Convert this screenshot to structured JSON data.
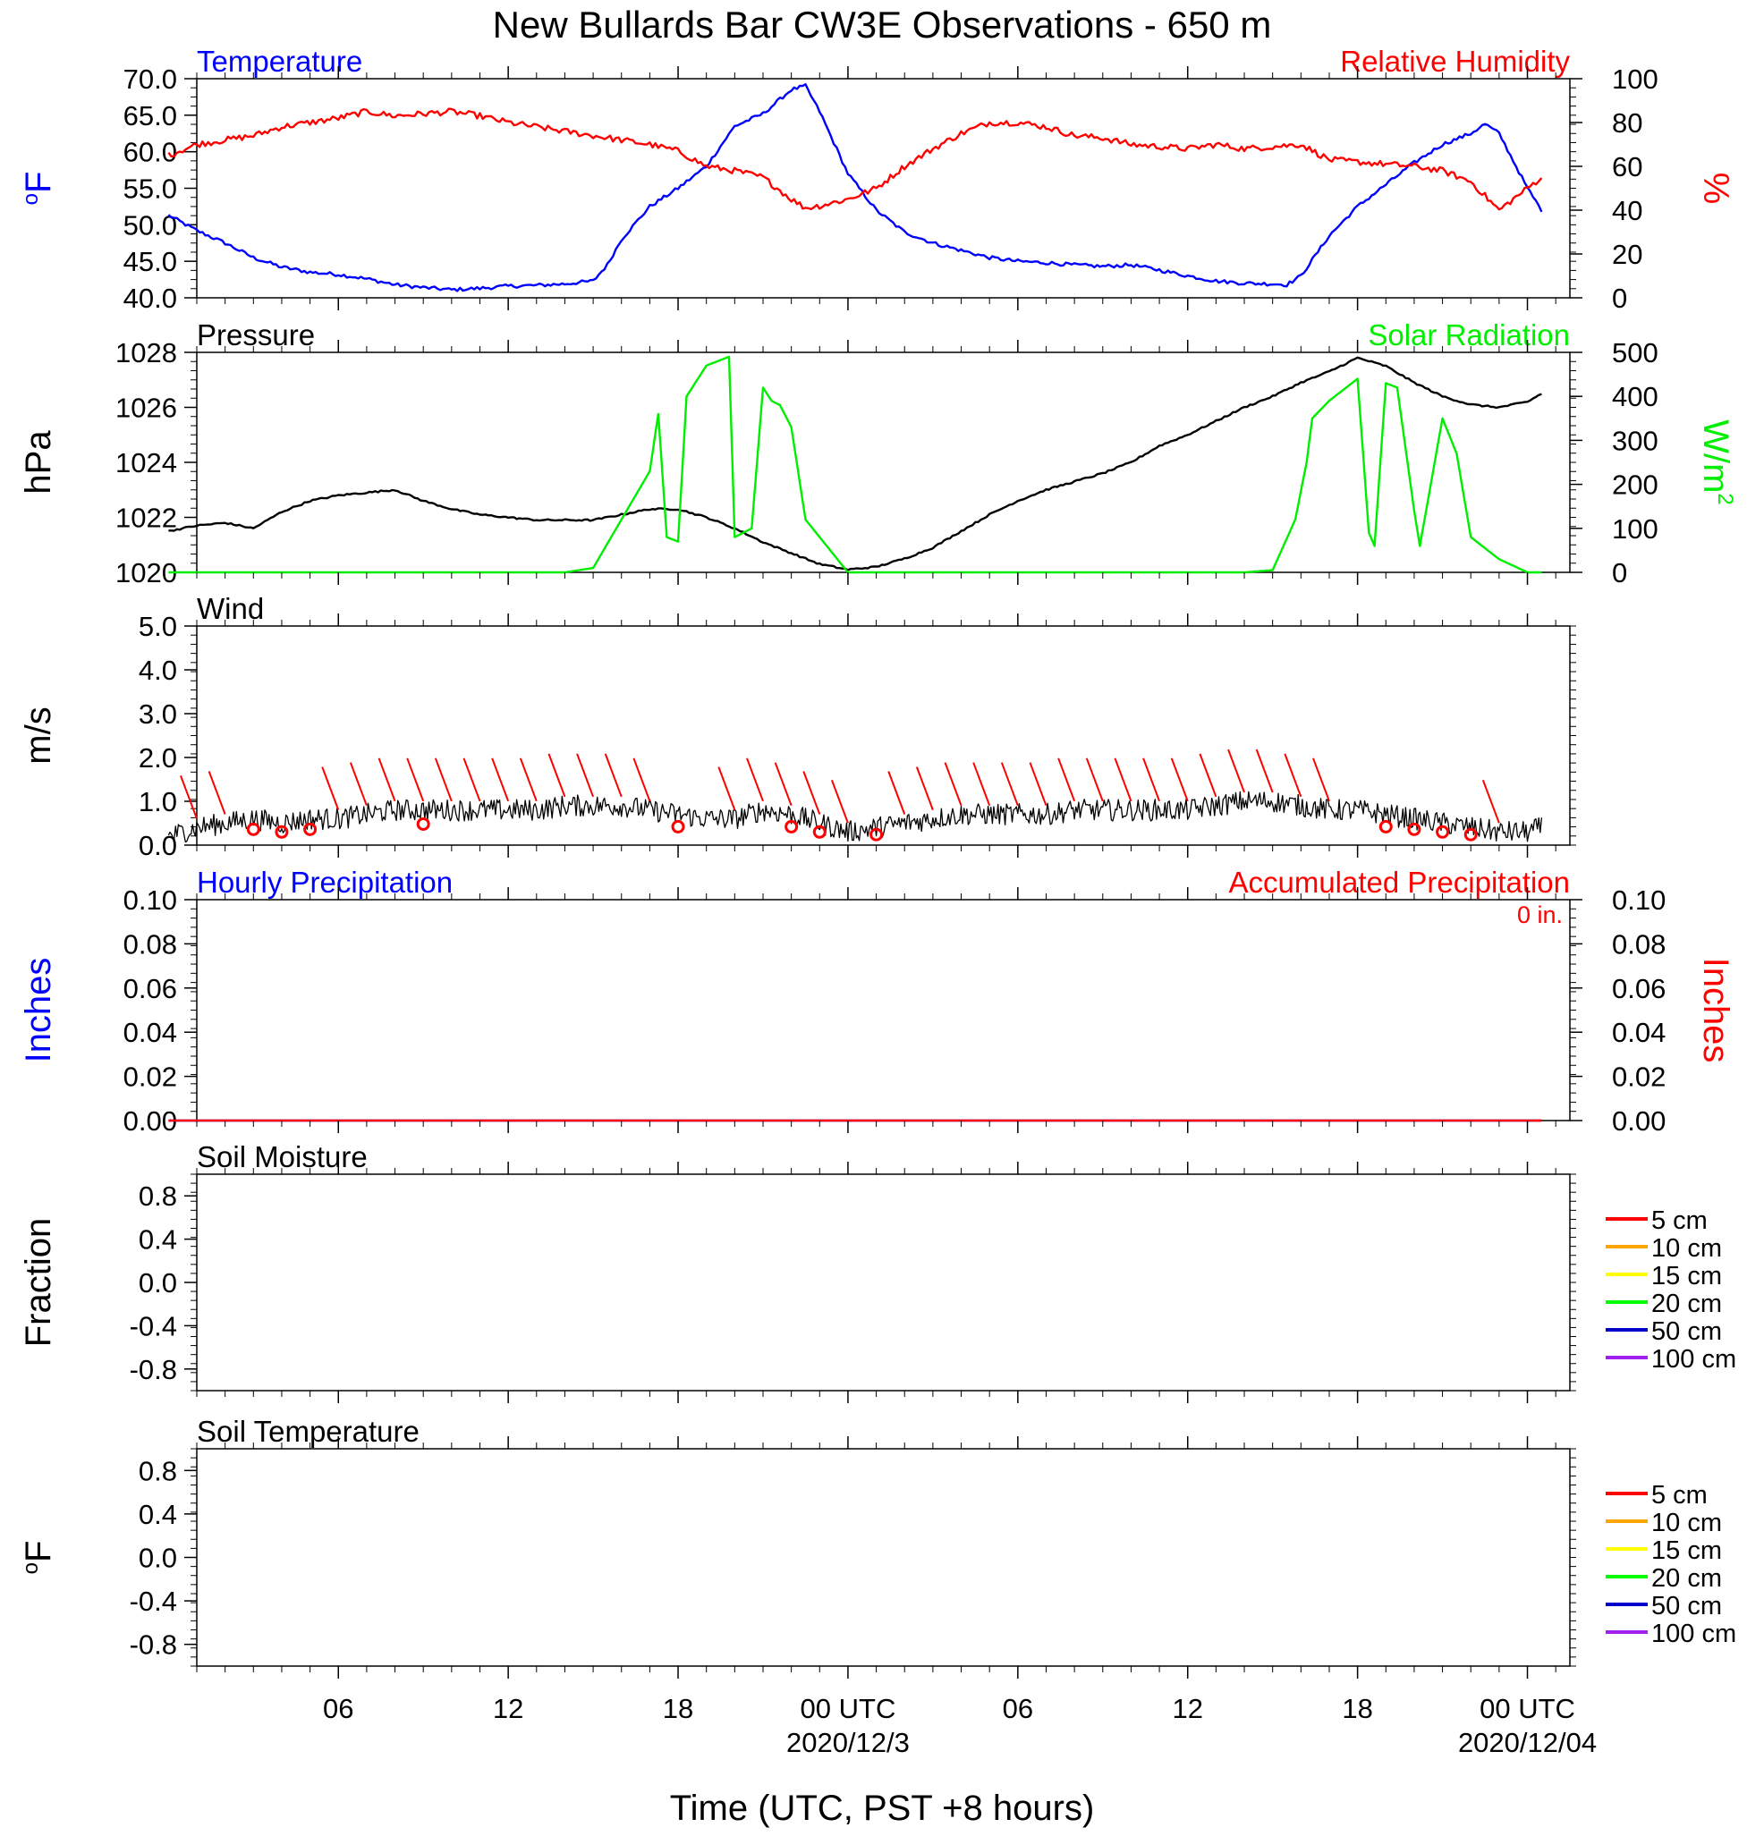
{
  "title": "New Bullards Bar CW3E Observations - 650 m",
  "xlabel": "Time (UTC, PST +8 hours)",
  "x_ticks": [
    {
      "hour": 6,
      "label": "06"
    },
    {
      "hour": 12,
      "label": "12"
    },
    {
      "hour": 18,
      "label": "18"
    },
    {
      "hour": 24,
      "label": "00 UTC",
      "sublabel": "2020/12/3"
    },
    {
      "hour": 30,
      "label": "06"
    },
    {
      "hour": 36,
      "label": "12"
    },
    {
      "hour": 42,
      "label": "18"
    },
    {
      "hour": 48,
      "label": "00 UTC",
      "sublabel": "2020/12/04"
    }
  ],
  "colors": {
    "temperature": "#0000ff",
    "humidity": "#ff0000",
    "pressure": "#000000",
    "solar": "#00ee00",
    "wind": "#000000",
    "barb": "#ff0000",
    "precip_hourly": "#0000ff",
    "precip_accum": "#ff0000"
  },
  "chart_data": [
    {
      "type": "line",
      "left_title": "Temperature",
      "right_title": "Relative Humidity",
      "ylabel_left": "°F",
      "ylabel_right": "%",
      "ylim_left": [
        40,
        70
      ],
      "ylim_right": [
        0,
        100
      ],
      "yticks_left": [
        "40.0",
        "45.0",
        "50.0",
        "55.0",
        "60.0",
        "65.0",
        "70.0"
      ],
      "yticks_right": [
        "0",
        "20",
        "40",
        "60",
        "80",
        "100"
      ],
      "series": [
        {
          "name": "Temperature",
          "axis": "left",
          "x": [
            0,
            1,
            2,
            3,
            4,
            5,
            6,
            7,
            8,
            9,
            10,
            11,
            12,
            13,
            14,
            15,
            15.5,
            16,
            17,
            18,
            19,
            20,
            21,
            22,
            22.5,
            23,
            24,
            25,
            26,
            27,
            28,
            29,
            30,
            31,
            32,
            33,
            34,
            35,
            36,
            37,
            38,
            39,
            39.5,
            40,
            41,
            42,
            43,
            44,
            45,
            46,
            46.5,
            47,
            48,
            48.5
          ],
          "y": [
            51.3,
            49.2,
            47.5,
            45.5,
            44.2,
            43.5,
            43.2,
            42.6,
            41.8,
            41.4,
            41.1,
            41.3,
            41.6,
            41.7,
            41.9,
            42.3,
            44.5,
            48,
            52.5,
            55,
            58,
            63.5,
            65.2,
            68.5,
            69,
            65.5,
            57,
            52,
            49,
            47.5,
            46.5,
            45.5,
            45,
            44.8,
            44.5,
            44.3,
            44.5,
            43.8,
            43,
            42.3,
            42,
            41.9,
            41.8,
            43,
            48.5,
            52.5,
            55.5,
            58.5,
            61,
            62.5,
            63.8,
            62.5,
            55,
            52
          ]
        },
        {
          "name": "Relative Humidity",
          "axis": "right",
          "x": [
            0,
            1,
            2,
            3,
            4,
            5,
            6,
            7,
            8,
            9,
            10,
            11,
            12,
            13,
            14,
            15,
            16,
            17,
            18,
            19,
            20,
            21,
            22,
            22.5,
            23,
            24,
            25,
            26,
            27,
            28,
            29,
            30,
            31,
            32,
            33,
            34,
            35,
            36,
            37,
            38,
            39,
            40,
            41,
            42,
            43,
            44,
            45,
            46,
            47,
            48,
            48.5
          ],
          "y": [
            65,
            70,
            72,
            74,
            78,
            80,
            82,
            85,
            83,
            84,
            85,
            83,
            80,
            78,
            76,
            74,
            72,
            70,
            67,
            60,
            58,
            55,
            45,
            41,
            42,
            45,
            50,
            60,
            68,
            75,
            80,
            80,
            78,
            74,
            73,
            70,
            69,
            68,
            70,
            68,
            69,
            70,
            63,
            62,
            61,
            60,
            58,
            53,
            40,
            50,
            55
          ]
        }
      ]
    },
    {
      "type": "line",
      "left_title": "Pressure",
      "right_title": "Solar Radiation",
      "ylabel_left": "hPa",
      "ylabel_right": "W/m",
      "ylabel_right_sup": "2",
      "ylim_left": [
        1020,
        1028
      ],
      "ylim_right": [
        0,
        500
      ],
      "yticks_left": [
        "1020",
        "1022",
        "1024",
        "1026",
        "1028"
      ],
      "yticks_right": [
        "0",
        "100",
        "200",
        "300",
        "400",
        "500"
      ],
      "series": [
        {
          "name": "Pressure",
          "axis": "left",
          "x": [
            0,
            1,
            2,
            3,
            4,
            5,
            6,
            7,
            8,
            9,
            10,
            11,
            12,
            13,
            14,
            15,
            16,
            17,
            18,
            19,
            20,
            21,
            22,
            23,
            24,
            25,
            26,
            27,
            28,
            29,
            30,
            31,
            32,
            33,
            34,
            35,
            36,
            37,
            38,
            39,
            40,
            41,
            42,
            43,
            44,
            45,
            46,
            47,
            48,
            48.5
          ],
          "y": [
            1021.5,
            1021.7,
            1021.8,
            1021.6,
            1022.2,
            1022.6,
            1022.8,
            1022.9,
            1023,
            1022.6,
            1022.3,
            1022.1,
            1022.0,
            1021.9,
            1021.9,
            1021.9,
            1022.1,
            1022.3,
            1022.3,
            1022.0,
            1021.6,
            1021.1,
            1020.7,
            1020.3,
            1020.1,
            1020.2,
            1020.5,
            1020.9,
            1021.5,
            1022.1,
            1022.6,
            1023.0,
            1023.3,
            1023.6,
            1024.0,
            1024.6,
            1025.0,
            1025.5,
            1026.0,
            1026.4,
            1026.9,
            1027.3,
            1027.8,
            1027.5,
            1026.9,
            1026.4,
            1026.1,
            1026.0,
            1026.2,
            1026.5
          ]
        },
        {
          "name": "Solar Radiation",
          "axis": "right",
          "x": [
            0,
            14,
            15,
            16,
            17,
            17.3,
            17.6,
            18,
            18.3,
            19,
            19.8,
            20,
            20.6,
            21,
            21.3,
            21.6,
            22,
            22.5,
            23,
            23.5,
            24,
            38,
            39,
            39.8,
            40.2,
            40.4,
            41,
            42,
            42.4,
            42.6,
            43,
            43.4,
            44,
            44.2,
            45,
            45.5,
            46,
            47,
            48,
            48.5
          ],
          "y": [
            0,
            0,
            10,
            120,
            230,
            360,
            80,
            70,
            400,
            470,
            490,
            80,
            100,
            420,
            390,
            380,
            330,
            120,
            80,
            40,
            0,
            0,
            5,
            120,
            250,
            350,
            390,
            440,
            90,
            60,
            430,
            420,
            140,
            60,
            350,
            270,
            80,
            30,
            0,
            0
          ]
        }
      ]
    },
    {
      "type": "line",
      "left_title": "Wind",
      "ylabel_left": "m/s",
      "ylim_left": [
        0,
        5
      ],
      "yticks_left": [
        "0.0",
        "1.0",
        "2.0",
        "3.0",
        "4.0",
        "5.0"
      ],
      "series": [
        {
          "name": "Wind",
          "axis": "left",
          "x": [
            0,
            1,
            2,
            3,
            4,
            5,
            6,
            7,
            8,
            9,
            10,
            11,
            12,
            13,
            14,
            15,
            16,
            17,
            18,
            19,
            20,
            21,
            22,
            23,
            24,
            25,
            26,
            27,
            28,
            29,
            30,
            31,
            32,
            33,
            34,
            35,
            36,
            37,
            38,
            39,
            40,
            41,
            42,
            43,
            44,
            45,
            46,
            47,
            48,
            48.5
          ],
          "y": [
            0.2,
            0.4,
            0.5,
            0.6,
            0.5,
            0.6,
            0.6,
            0.7,
            0.8,
            0.8,
            0.8,
            0.8,
            0.8,
            0.8,
            0.9,
            0.9,
            0.9,
            0.8,
            0.7,
            0.6,
            0.6,
            0.8,
            0.7,
            0.5,
            0.3,
            0.4,
            0.5,
            0.6,
            0.7,
            0.7,
            0.7,
            0.7,
            0.8,
            0.8,
            0.8,
            0.8,
            0.8,
            0.9,
            1.0,
            1.0,
            0.9,
            0.8,
            0.8,
            0.7,
            0.6,
            0.5,
            0.4,
            0.3,
            0.3,
            0.4
          ]
        }
      ],
      "calm_hours": [
        3,
        4,
        5,
        9,
        18,
        22,
        23,
        25,
        43,
        44,
        45,
        46
      ],
      "barb_hours": [
        1,
        2,
        6,
        7,
        8,
        9,
        10,
        11,
        12,
        13,
        14,
        15,
        16,
        17,
        20,
        21,
        22,
        23,
        24,
        26,
        27,
        28,
        29,
        30,
        31,
        32,
        33,
        34,
        35,
        36,
        37,
        38,
        39,
        40,
        41,
        47
      ]
    },
    {
      "type": "line",
      "left_title": "Hourly Precipitation",
      "right_title": "Accumulated Precipitation",
      "annotation": "0 in.",
      "ylabel_left": "Inches",
      "ylabel_right": "Inches",
      "ylim_left": [
        0,
        0.1
      ],
      "ylim_right": [
        0,
        0.1
      ],
      "yticks_left": [
        "0.00",
        "0.02",
        "0.04",
        "0.06",
        "0.08",
        "0.10"
      ],
      "yticks_right": [
        "0.00",
        "0.02",
        "0.04",
        "0.06",
        "0.08",
        "0.10"
      ],
      "series": [
        {
          "name": "Hourly Precipitation",
          "axis": "left",
          "x": [
            0,
            48.5
          ],
          "y": [
            0,
            0
          ]
        },
        {
          "name": "Accumulated Precipitation",
          "axis": "right",
          "x": [
            0,
            48.5
          ],
          "y": [
            0,
            0
          ]
        }
      ]
    },
    {
      "type": "line",
      "left_title": "Soil Moisture",
      "ylabel_left": "Fraction",
      "ylim_left": [
        -1,
        1
      ],
      "yticks_left": [
        "-0.8",
        "-0.4",
        "0.0",
        "0.4",
        "0.8"
      ],
      "legend": [
        {
          "label": "5 cm",
          "color": "#ff0000"
        },
        {
          "label": "10 cm",
          "color": "#ffa500"
        },
        {
          "label": "15 cm",
          "color": "#ffff00"
        },
        {
          "label": "20 cm",
          "color": "#00ff00"
        },
        {
          "label": "50 cm",
          "color": "#0000cc"
        },
        {
          "label": "100 cm",
          "color": "#a020f0"
        }
      ],
      "series": []
    },
    {
      "type": "line",
      "left_title": "Soil Temperature",
      "ylabel_left": "°F",
      "ylim_left": [
        -1,
        1
      ],
      "yticks_left": [
        "-0.8",
        "-0.4",
        "0.0",
        "0.4",
        "0.8"
      ],
      "legend": [
        {
          "label": "5 cm",
          "color": "#ff0000"
        },
        {
          "label": "10 cm",
          "color": "#ffa500"
        },
        {
          "label": "15 cm",
          "color": "#ffff00"
        },
        {
          "label": "20 cm",
          "color": "#00ff00"
        },
        {
          "label": "50 cm",
          "color": "#0000cc"
        },
        {
          "label": "100 cm",
          "color": "#a020f0"
        }
      ],
      "series": []
    }
  ]
}
